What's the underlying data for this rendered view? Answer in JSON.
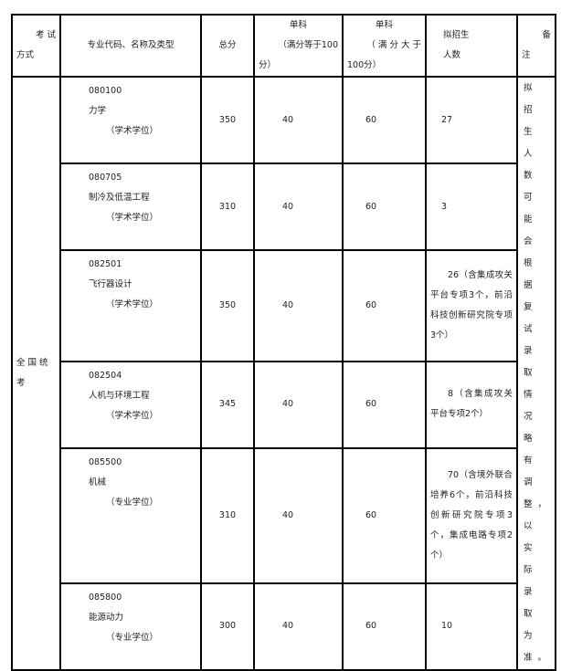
{
  "header": {
    "method": [
      "考 试",
      "方式"
    ],
    "major": "专业代码、名称及类型",
    "total": "总分",
    "single100": [
      "单科",
      "（满分等于100",
      "分）"
    ],
    "singleOver": [
      "单科",
      "（ 满 分 大 于",
      "100分）"
    ],
    "quota": [
      "拟招生",
      "人数"
    ],
    "remark": [
      "备",
      "注"
    ]
  },
  "method": "全 国 统考",
  "remark": "拟招生人数可能会根据复试录取情况略有调整，以实际录取为准。",
  "rows": [
    {
      "code": "080100",
      "name": "力学",
      "type": "（学术学位）",
      "total": "350",
      "s1": "40",
      "s2": "60",
      "quota": "27"
    },
    {
      "code": "080705",
      "name": "制冷及低温工程",
      "type": "（学术学位）",
      "total": "310",
      "s1": "40",
      "s2": "60",
      "quota": "3"
    },
    {
      "code": "082501",
      "name": "飞行器设计",
      "type": "（学术学位）",
      "total": "350",
      "s1": "40",
      "s2": "60",
      "quota": "26（含集成攻关平台专项3个，前沿科技创新研究院专项3个）"
    },
    {
      "code": "082504",
      "name": "人机与环境工程",
      "type": "（学术学位）",
      "total": "345",
      "s1": "40",
      "s2": "60",
      "quota": "8（含集成攻关平台专项2个）"
    },
    {
      "code": "085500",
      "name": "机械",
      "type": "（专业学位）",
      "total": "310",
      "s1": "40",
      "s2": "60",
      "quota": "70（含境外联合培养6个，前沿科技创新研究院专项3个，集成电路专项2个）"
    },
    {
      "code": "085800",
      "name": "能源动力",
      "type": "（专业学位）",
      "total": "300",
      "s1": "40",
      "s2": "60",
      "quota": "10"
    }
  ]
}
